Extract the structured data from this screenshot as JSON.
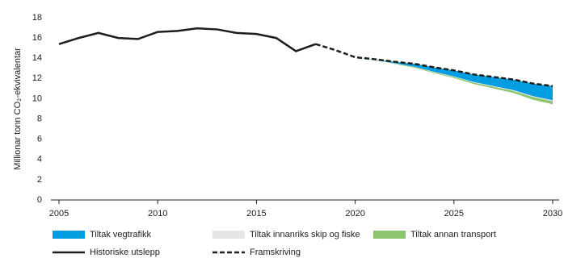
{
  "chart_data": {
    "type": "line",
    "y_label": "Millionar tonn CO₂-ekvivalentar",
    "x": [
      2005,
      2006,
      2007,
      2008,
      2009,
      2010,
      2011,
      2012,
      2013,
      2014,
      2015,
      2016,
      2017,
      2018,
      2019,
      2020,
      2021,
      2022,
      2023,
      2024,
      2025,
      2026,
      2027,
      2028,
      2029,
      2030
    ],
    "xlim": [
      2005,
      2030
    ],
    "xticks": [
      2005,
      2010,
      2015,
      2020,
      2025,
      2030
    ],
    "ylim": [
      0,
      18
    ],
    "yticks": [
      0,
      2,
      4,
      6,
      8,
      10,
      12,
      14,
      16,
      18
    ],
    "series": [
      {
        "name": "Tiltak vegtrafikk",
        "color": "#009ee0",
        "style": "area",
        "values": [
          null,
          null,
          null,
          null,
          null,
          null,
          null,
          null,
          null,
          null,
          null,
          null,
          null,
          null,
          null,
          0,
          0.05,
          0.15,
          0.3,
          0.45,
          0.6,
          0.75,
          0.9,
          1.05,
          1.25,
          1.4
        ]
      },
      {
        "name": "Tiltak innanriks skip og fiske",
        "color": "#e6e6e6",
        "style": "area",
        "values": [
          null,
          null,
          null,
          null,
          null,
          null,
          null,
          null,
          null,
          null,
          null,
          null,
          null,
          null,
          null,
          0,
          0.01,
          0.02,
          0.03,
          0.04,
          0.05,
          0.06,
          0.07,
          0.08,
          0.09,
          0.1
        ]
      },
      {
        "name": "Tiltak annan transport",
        "color": "#8cc56e",
        "style": "area",
        "values": [
          null,
          null,
          null,
          null,
          null,
          null,
          null,
          null,
          null,
          null,
          null,
          null,
          null,
          null,
          null,
          0,
          0.02,
          0.04,
          0.06,
          0.08,
          0.1,
          0.13,
          0.16,
          0.2,
          0.25,
          0.3
        ]
      },
      {
        "name": "Historiske utslepp",
        "color": "#1d1d1b",
        "style": "solid",
        "values": [
          15.4,
          16.0,
          16.5,
          16.0,
          15.9,
          16.6,
          16.7,
          16.95,
          16.85,
          16.5,
          16.4,
          16.0,
          14.7,
          15.4,
          null,
          null,
          null,
          null,
          null,
          null,
          null,
          null,
          null,
          null,
          null,
          null
        ]
      },
      {
        "name": "Framskriving",
        "color": "#1d1d1b",
        "style": "dashed",
        "values": [
          null,
          null,
          null,
          null,
          null,
          null,
          null,
          null,
          null,
          null,
          null,
          null,
          null,
          15.4,
          14.8,
          14.1,
          13.9,
          13.65,
          13.45,
          13.1,
          12.8,
          12.4,
          12.15,
          11.9,
          11.5,
          11.25
        ]
      }
    ]
  }
}
